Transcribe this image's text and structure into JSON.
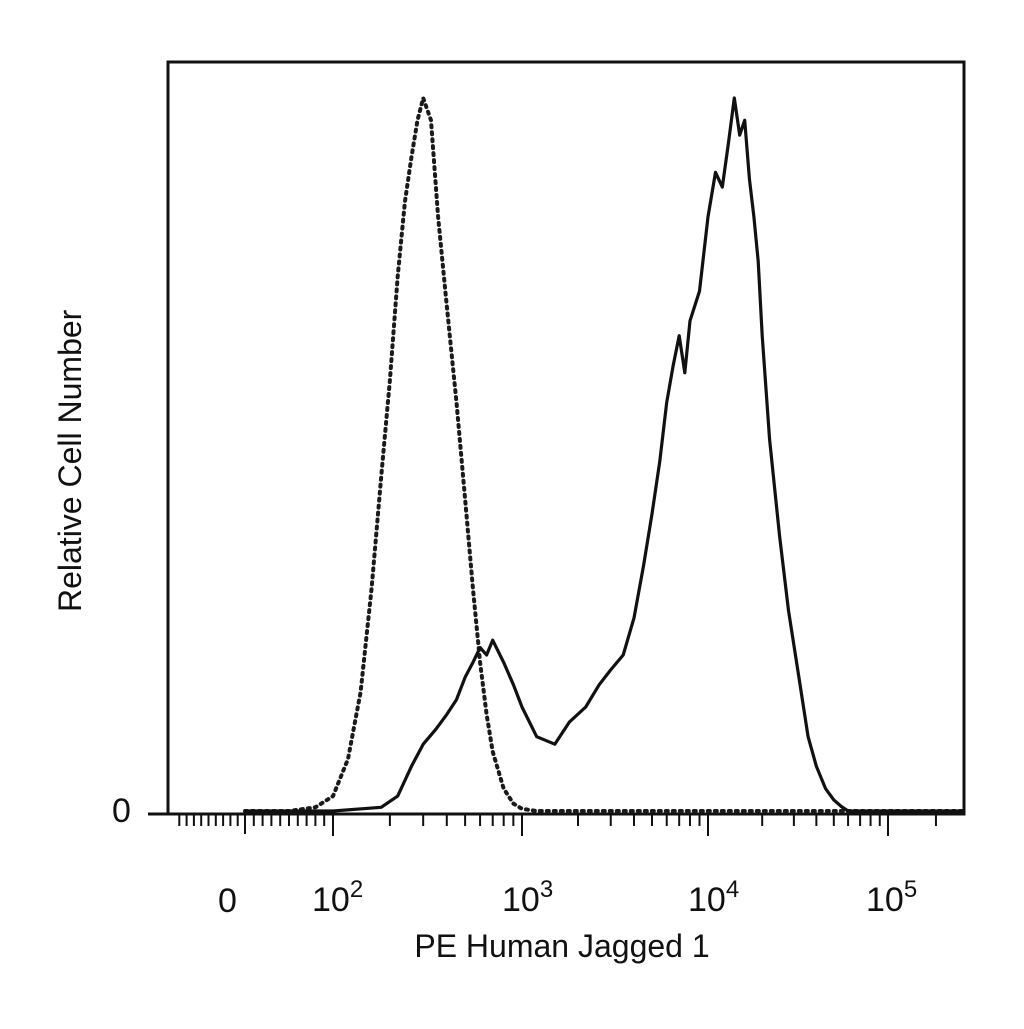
{
  "chart_data": {
    "type": "line",
    "xlabel": "PE Human Jagged 1",
    "ylabel": "Relative Cell Number",
    "x_scale": "logicle",
    "x_ticks": [
      {
        "value": 0,
        "label": "0"
      },
      {
        "value": 100,
        "label": "10",
        "exp": "2"
      },
      {
        "value": 1000,
        "label": "10",
        "exp": "3"
      },
      {
        "value": 10000,
        "label": "10",
        "exp": "4"
      },
      {
        "value": 100000,
        "label": "10",
        "exp": "5"
      }
    ],
    "y_ticks": [
      {
        "value": 0,
        "label": "0"
      }
    ],
    "ylim": [
      0,
      1.0
    ],
    "grid": false,
    "legend": "none",
    "series": [
      {
        "style": "dotted",
        "color": "#1a1a1a",
        "x": [
          0,
          50,
          80,
          100,
          120,
          140,
          160,
          180,
          200,
          220,
          240,
          260,
          280,
          300,
          330,
          360,
          400,
          450,
          500,
          550,
          600,
          650,
          700,
          800,
          900,
          1000,
          1200,
          2000,
          10000,
          100000,
          300000
        ],
        "y": [
          0,
          0,
          0.005,
          0.02,
          0.07,
          0.16,
          0.3,
          0.45,
          0.58,
          0.72,
          0.82,
          0.88,
          0.93,
          0.96,
          0.93,
          0.8,
          0.68,
          0.55,
          0.42,
          0.3,
          0.2,
          0.13,
          0.08,
          0.03,
          0.01,
          0.003,
          0,
          0,
          0,
          0,
          0
        ]
      },
      {
        "style": "solid",
        "color": "#111111",
        "x": [
          0,
          100,
          180,
          220,
          260,
          300,
          350,
          400,
          450,
          500,
          550,
          600,
          650,
          700,
          800,
          900,
          1000,
          1200,
          1500,
          1800,
          2200,
          2600,
          3000,
          3500,
          4000,
          4500,
          5000,
          5500,
          6000,
          6500,
          7000,
          7500,
          8000,
          9000,
          10000,
          11000,
          12000,
          13000,
          14000,
          15000,
          16000,
          17000,
          18000,
          19000,
          20000,
          22000,
          25000,
          28000,
          32000,
          36000,
          40000,
          45000,
          50000,
          55000,
          60000,
          70000,
          80000,
          100000,
          300000
        ],
        "y": [
          0,
          0,
          0.005,
          0.02,
          0.06,
          0.09,
          0.11,
          0.13,
          0.15,
          0.18,
          0.2,
          0.22,
          0.21,
          0.23,
          0.2,
          0.17,
          0.14,
          0.1,
          0.09,
          0.12,
          0.14,
          0.17,
          0.19,
          0.21,
          0.26,
          0.33,
          0.4,
          0.47,
          0.55,
          0.6,
          0.64,
          0.59,
          0.66,
          0.7,
          0.8,
          0.86,
          0.84,
          0.9,
          0.96,
          0.91,
          0.93,
          0.85,
          0.8,
          0.74,
          0.64,
          0.5,
          0.37,
          0.27,
          0.18,
          0.1,
          0.06,
          0.03,
          0.015,
          0.006,
          0,
          0,
          0,
          0,
          0
        ]
      }
    ]
  }
}
